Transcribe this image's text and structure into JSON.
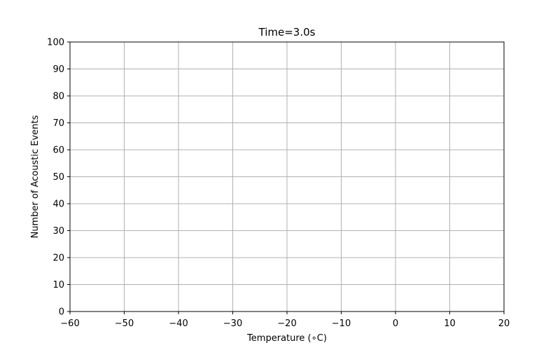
{
  "chart_data": {
    "type": "scatter",
    "title": "Time=3.0s",
    "xlabel": "Temperature (∘C)",
    "ylabel": "Number of Acoustic Events",
    "xlim": [
      -60,
      20
    ],
    "ylim": [
      0,
      100
    ],
    "x_ticks": [
      -60,
      -50,
      -40,
      -30,
      -20,
      -10,
      0,
      10,
      20
    ],
    "x_tick_labels": [
      "−60",
      "−50",
      "−40",
      "−30",
      "−20",
      "−10",
      "0",
      "10",
      "20"
    ],
    "y_ticks": [
      0,
      10,
      20,
      30,
      40,
      50,
      60,
      70,
      80,
      90,
      100
    ],
    "y_tick_labels": [
      "0",
      "10",
      "20",
      "30",
      "40",
      "50",
      "60",
      "70",
      "80",
      "90",
      "100"
    ],
    "grid": true,
    "series": [
      {
        "x": [],
        "y": []
      }
    ],
    "colors": {
      "grid": "#b0b0b0",
      "axes": "#000000",
      "background": "#ffffff"
    }
  }
}
